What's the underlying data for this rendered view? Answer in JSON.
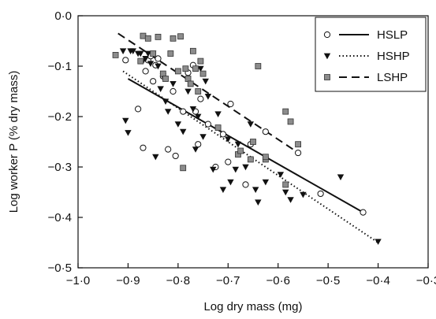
{
  "chart_data": {
    "type": "scatter",
    "title": "",
    "xlabel": "Log dry mass (mg)",
    "ylabel": "Log worker P (% dry mass)",
    "xlim": [
      -1.0,
      -0.3
    ],
    "ylim": [
      -0.5,
      0.0
    ],
    "xticks": [
      -1.0,
      -0.9,
      -0.8,
      -0.7,
      -0.6,
      -0.5,
      -0.4,
      -0.3
    ],
    "yticks": [
      0.0,
      -0.1,
      -0.2,
      -0.3,
      -0.4,
      -0.5
    ],
    "xtick_labels": [
      "−1·0",
      "−0·9",
      "−0·8",
      "−0·7",
      "−0·6",
      "−0·5",
      "−0·4",
      "−0·3"
    ],
    "ytick_labels": [
      "0·0",
      "−0·1",
      "−0·2",
      "−0·3",
      "−0·4",
      "−0·5"
    ],
    "grid": false,
    "legend_position": "top-right",
    "series": [
      {
        "name": "HSLP",
        "marker": "open-circle",
        "line": "solid",
        "color": "#000000",
        "fit": [
          [
            -0.9,
            -0.125
          ],
          [
            -0.43,
            -0.39
          ]
        ],
        "points": [
          [
            -0.905,
            -0.088
          ],
          [
            -0.88,
            -0.185
          ],
          [
            -0.87,
            -0.262
          ],
          [
            -0.865,
            -0.11
          ],
          [
            -0.86,
            -0.088
          ],
          [
            -0.855,
            -0.08
          ],
          [
            -0.85,
            -0.13
          ],
          [
            -0.845,
            -0.098
          ],
          [
            -0.84,
            -0.085
          ],
          [
            -0.83,
            -0.12
          ],
          [
            -0.82,
            -0.265
          ],
          [
            -0.81,
            -0.15
          ],
          [
            -0.805,
            -0.278
          ],
          [
            -0.79,
            -0.19
          ],
          [
            -0.78,
            -0.113
          ],
          [
            -0.77,
            -0.098
          ],
          [
            -0.765,
            -0.19
          ],
          [
            -0.76,
            -0.255
          ],
          [
            -0.755,
            -0.165
          ],
          [
            -0.74,
            -0.215
          ],
          [
            -0.725,
            -0.3
          ],
          [
            -0.71,
            -0.235
          ],
          [
            -0.7,
            -0.29
          ],
          [
            -0.695,
            -0.175
          ],
          [
            -0.665,
            -0.335
          ],
          [
            -0.655,
            -0.255
          ],
          [
            -0.625,
            -0.23
          ],
          [
            -0.56,
            -0.272
          ],
          [
            -0.515,
            -0.353
          ],
          [
            -0.43,
            -0.39
          ]
        ]
      },
      {
        "name": "HSHP",
        "marker": "filled-triangle-down",
        "line": "dotted",
        "color": "#000000",
        "fit": [
          [
            -0.91,
            -0.11
          ],
          [
            -0.4,
            -0.45
          ]
        ],
        "points": [
          [
            -0.91,
            -0.07
          ],
          [
            -0.905,
            -0.208
          ],
          [
            -0.9,
            -0.232
          ],
          [
            -0.895,
            -0.07
          ],
          [
            -0.89,
            -0.07
          ],
          [
            -0.88,
            -0.075
          ],
          [
            -0.875,
            -0.075
          ],
          [
            -0.87,
            -0.09
          ],
          [
            -0.865,
            -0.085
          ],
          [
            -0.86,
            -0.075
          ],
          [
            -0.855,
            -0.095
          ],
          [
            -0.85,
            -0.075
          ],
          [
            -0.845,
            -0.28
          ],
          [
            -0.84,
            -0.1
          ],
          [
            -0.835,
            -0.145
          ],
          [
            -0.83,
            -0.12
          ],
          [
            -0.825,
            -0.17
          ],
          [
            -0.82,
            -0.19
          ],
          [
            -0.81,
            -0.135
          ],
          [
            -0.8,
            -0.215
          ],
          [
            -0.79,
            -0.23
          ],
          [
            -0.78,
            -0.15
          ],
          [
            -0.77,
            -0.185
          ],
          [
            -0.765,
            -0.265
          ],
          [
            -0.76,
            -0.2
          ],
          [
            -0.755,
            -0.105
          ],
          [
            -0.75,
            -0.24
          ],
          [
            -0.745,
            -0.13
          ],
          [
            -0.74,
            -0.16
          ],
          [
            -0.73,
            -0.305
          ],
          [
            -0.72,
            -0.195
          ],
          [
            -0.71,
            -0.345
          ],
          [
            -0.7,
            -0.245
          ],
          [
            -0.695,
            -0.33
          ],
          [
            -0.685,
            -0.305
          ],
          [
            -0.68,
            -0.255
          ],
          [
            -0.665,
            -0.3
          ],
          [
            -0.655,
            -0.215
          ],
          [
            -0.645,
            -0.345
          ],
          [
            -0.64,
            -0.37
          ],
          [
            -0.625,
            -0.33
          ],
          [
            -0.595,
            -0.315
          ],
          [
            -0.585,
            -0.35
          ],
          [
            -0.575,
            -0.365
          ],
          [
            -0.55,
            -0.355
          ],
          [
            -0.475,
            -0.32
          ],
          [
            -0.4,
            -0.448
          ]
        ]
      },
      {
        "name": "LSHP",
        "marker": "grey-square",
        "line": "dashed",
        "color": "#808080",
        "fit": [
          [
            -0.92,
            -0.035
          ],
          [
            -0.57,
            -0.265
          ]
        ],
        "points": [
          [
            -0.925,
            -0.078
          ],
          [
            -0.875,
            -0.09
          ],
          [
            -0.87,
            -0.04
          ],
          [
            -0.86,
            -0.045
          ],
          [
            -0.85,
            -0.075
          ],
          [
            -0.84,
            -0.042
          ],
          [
            -0.83,
            -0.115
          ],
          [
            -0.825,
            -0.125
          ],
          [
            -0.815,
            -0.075
          ],
          [
            -0.81,
            -0.045
          ],
          [
            -0.8,
            -0.11
          ],
          [
            -0.795,
            -0.041
          ],
          [
            -0.785,
            -0.105
          ],
          [
            -0.78,
            -0.125
          ],
          [
            -0.775,
            -0.135
          ],
          [
            -0.77,
            -0.07
          ],
          [
            -0.765,
            -0.105
          ],
          [
            -0.76,
            -0.15
          ],
          [
            -0.755,
            -0.09
          ],
          [
            -0.75,
            -0.115
          ],
          [
            -0.79,
            -0.302
          ],
          [
            -0.72,
            -0.222
          ],
          [
            -0.68,
            -0.275
          ],
          [
            -0.675,
            -0.268
          ],
          [
            -0.655,
            -0.285
          ],
          [
            -0.65,
            -0.25
          ],
          [
            -0.64,
            -0.1
          ],
          [
            -0.625,
            -0.285
          ],
          [
            -0.625,
            -0.28
          ],
          [
            -0.585,
            -0.19
          ],
          [
            -0.585,
            -0.335
          ],
          [
            -0.575,
            -0.21
          ],
          [
            -0.56,
            -0.255
          ]
        ]
      }
    ]
  }
}
